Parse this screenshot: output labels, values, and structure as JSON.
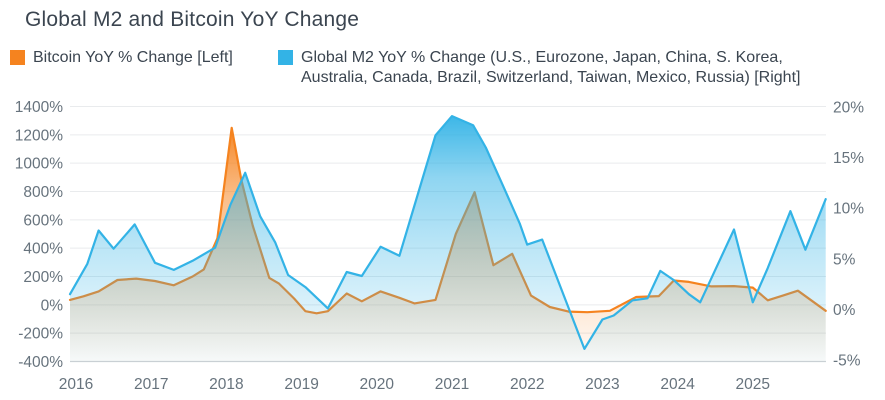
{
  "header": {
    "title": "Global M2 and Bitcoin YoY Change"
  },
  "legend": {
    "items": [
      {
        "label": "Bitcoin YoY % Change [Left]",
        "label_lines": [
          "Bitcoin YoY % Change [Left]"
        ],
        "color": "#f5831f"
      },
      {
        "label": "Global M2 YoY % Change (U.S., Eurozone, Japan, China, S. Korea, Australia, Canada, Brazil, Switzerland, Taiwan, Mexico, Russia) [Right]",
        "label_lines": [
          "Global M2 YoY % Change (U.S., Eurozone, Japan, China, S. Korea,",
          "Australia, Canada, Brazil, Switzerland, Taiwan, Mexico, Russia) [Right]"
        ],
        "color": "#33b3e6"
      }
    ]
  },
  "chart_data": {
    "type": "area",
    "title": "Global M2 and Bitcoin YoY Change",
    "x_axis": {
      "tick_labels": [
        "2016",
        "2017",
        "2018",
        "2019",
        "2020",
        "2021",
        "2022",
        "2023",
        "2024",
        "2025"
      ],
      "range": [
        2015.92,
        2025.97
      ]
    },
    "left_axis": {
      "title": "Bitcoin YoY % Change",
      "tick_values": [
        1400,
        1200,
        1000,
        800,
        600,
        400,
        200,
        0,
        -200,
        -400
      ],
      "tick_format": "percent",
      "range": [
        -400,
        1400
      ]
    },
    "right_axis": {
      "title": "Global M2 YoY % Change",
      "tick_values": [
        20,
        15,
        10,
        5,
        0,
        -5
      ],
      "tick_format": "percent",
      "range": [
        -5,
        20
      ]
    },
    "grid": "horizontal",
    "legend_position": "top",
    "series": [
      {
        "name": "Bitcoin YoY % Change [Left]",
        "axis": "left",
        "color": "#f5831f",
        "points": [
          [
            2015.92,
            35
          ],
          [
            2016.1,
            60
          ],
          [
            2016.3,
            95
          ],
          [
            2016.55,
            175
          ],
          [
            2016.8,
            185
          ],
          [
            2017.05,
            168
          ],
          [
            2017.3,
            138
          ],
          [
            2017.55,
            200
          ],
          [
            2017.7,
            250
          ],
          [
            2017.88,
            470
          ],
          [
            2018.07,
            1250
          ],
          [
            2018.2,
            880
          ],
          [
            2018.35,
            560
          ],
          [
            2018.57,
            190
          ],
          [
            2018.7,
            150
          ],
          [
            2018.9,
            45
          ],
          [
            2019.05,
            -45
          ],
          [
            2019.2,
            -60
          ],
          [
            2019.35,
            -45
          ],
          [
            2019.6,
            80
          ],
          [
            2019.8,
            25
          ],
          [
            2020.05,
            95
          ],
          [
            2020.3,
            50
          ],
          [
            2020.5,
            10
          ],
          [
            2020.78,
            35
          ],
          [
            2021.05,
            500
          ],
          [
            2021.3,
            795
          ],
          [
            2021.55,
            280
          ],
          [
            2021.8,
            360
          ],
          [
            2022.05,
            65
          ],
          [
            2022.3,
            -15
          ],
          [
            2022.55,
            -48
          ],
          [
            2022.8,
            -52
          ],
          [
            2023.1,
            -42
          ],
          [
            2023.45,
            55
          ],
          [
            2023.75,
            62
          ],
          [
            2023.95,
            172
          ],
          [
            2024.15,
            162
          ],
          [
            2024.45,
            130
          ],
          [
            2024.75,
            132
          ],
          [
            2025.0,
            122
          ],
          [
            2025.2,
            32
          ],
          [
            2025.4,
            65
          ],
          [
            2025.6,
            100
          ],
          [
            2025.97,
            -42
          ]
        ]
      },
      {
        "name": "Global M2 YoY % Change [Right]",
        "axis": "right",
        "color": "#33b3e6",
        "points": [
          [
            2015.92,
            1.5
          ],
          [
            2016.15,
            4.5
          ],
          [
            2016.3,
            7.8
          ],
          [
            2016.5,
            6.0
          ],
          [
            2016.78,
            8.4
          ],
          [
            2017.05,
            4.6
          ],
          [
            2017.3,
            3.9
          ],
          [
            2017.55,
            4.8
          ],
          [
            2017.85,
            6.1
          ],
          [
            2018.05,
            10.3
          ],
          [
            2018.25,
            13.5
          ],
          [
            2018.45,
            9.2
          ],
          [
            2018.65,
            6.6
          ],
          [
            2018.82,
            3.4
          ],
          [
            2019.05,
            2.2
          ],
          [
            2019.35,
            0.1
          ],
          [
            2019.6,
            3.7
          ],
          [
            2019.8,
            3.3
          ],
          [
            2020.05,
            6.2
          ],
          [
            2020.3,
            5.3
          ],
          [
            2020.55,
            11.5
          ],
          [
            2020.78,
            17.2
          ],
          [
            2021.0,
            19.1
          ],
          [
            2021.28,
            18.2
          ],
          [
            2021.45,
            16.0
          ],
          [
            2021.68,
            12.2
          ],
          [
            2021.9,
            8.5
          ],
          [
            2022.0,
            6.4
          ],
          [
            2022.2,
            6.9
          ],
          [
            2022.76,
            -3.9
          ],
          [
            2023.0,
            -1.0
          ],
          [
            2023.15,
            -0.6
          ],
          [
            2023.4,
            0.9
          ],
          [
            2023.6,
            1.1
          ],
          [
            2023.77,
            3.8
          ],
          [
            2023.95,
            2.9
          ],
          [
            2024.15,
            1.5
          ],
          [
            2024.3,
            0.7
          ],
          [
            2024.75,
            7.9
          ],
          [
            2025.0,
            0.7
          ],
          [
            2025.2,
            4.1
          ],
          [
            2025.5,
            9.7
          ],
          [
            2025.7,
            5.9
          ],
          [
            2025.97,
            10.9
          ]
        ]
      }
    ],
    "colors": {
      "grid_line": "#e9ebed",
      "baseline": "#ccd2d6",
      "axis_text": "#67737d",
      "title_text": "#3b4550"
    }
  }
}
